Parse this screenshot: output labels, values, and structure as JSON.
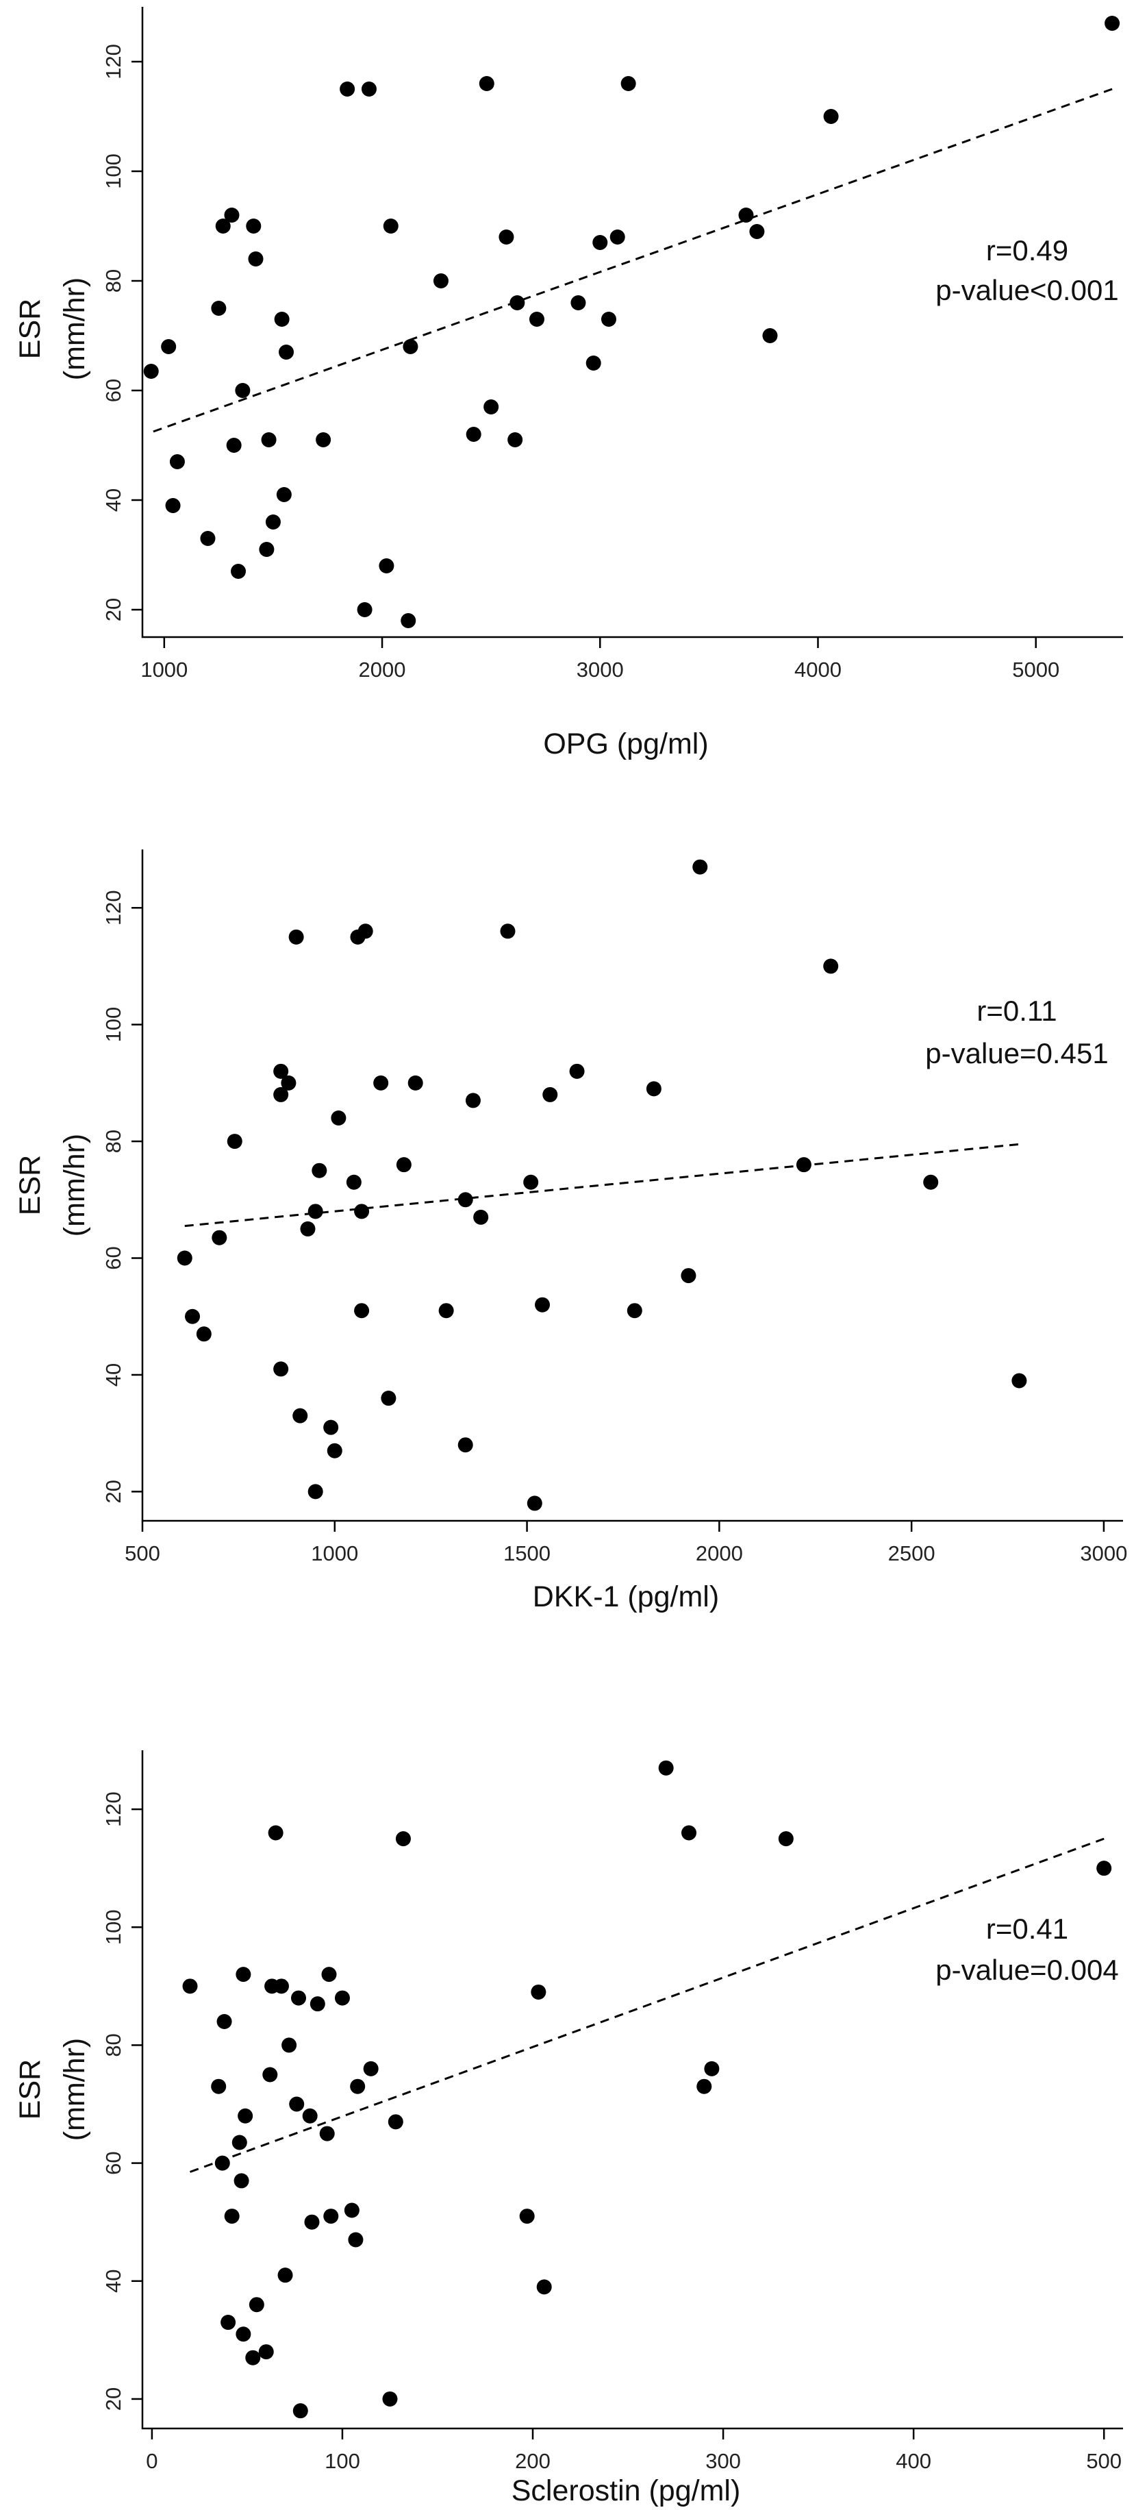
{
  "chart_data": [
    {
      "type": "scatter",
      "xlabel": "OPG (pg/ml)",
      "ylabel": [
        "ESR",
        "(mm/hr)"
      ],
      "xlim": [
        900,
        5400
      ],
      "ylim": [
        15,
        130
      ],
      "xticks": [
        1000,
        2000,
        3000,
        4000,
        5000
      ],
      "yticks": [
        20,
        40,
        60,
        80,
        100,
        120
      ],
      "annotation": [
        "r=0.49",
        "p-value<0.001"
      ],
      "marker_color": "#000000",
      "fit": {
        "x": [
          950,
          5350
        ],
        "y": [
          52.5,
          115
        ]
      },
      "points": [
        {
          "x": 940,
          "y": 63.5
        },
        {
          "x": 1020,
          "y": 68
        },
        {
          "x": 1040,
          "y": 39
        },
        {
          "x": 1060,
          "y": 47
        },
        {
          "x": 1200,
          "y": 33
        },
        {
          "x": 1250,
          "y": 75
        },
        {
          "x": 1270,
          "y": 90
        },
        {
          "x": 1310,
          "y": 92
        },
        {
          "x": 1320,
          "y": 50
        },
        {
          "x": 1340,
          "y": 27
        },
        {
          "x": 1360,
          "y": 60
        },
        {
          "x": 1410,
          "y": 90
        },
        {
          "x": 1420,
          "y": 84
        },
        {
          "x": 1470,
          "y": 31
        },
        {
          "x": 1480,
          "y": 51
        },
        {
          "x": 1500,
          "y": 36
        },
        {
          "x": 1540,
          "y": 73
        },
        {
          "x": 1550,
          "y": 41
        },
        {
          "x": 1560,
          "y": 67
        },
        {
          "x": 1730,
          "y": 51
        },
        {
          "x": 1840,
          "y": 115
        },
        {
          "x": 1920,
          "y": 20
        },
        {
          "x": 1940,
          "y": 115
        },
        {
          "x": 2020,
          "y": 28
        },
        {
          "x": 2040,
          "y": 90
        },
        {
          "x": 2120,
          "y": 18
        },
        {
          "x": 2130,
          "y": 68
        },
        {
          "x": 2270,
          "y": 80
        },
        {
          "x": 2420,
          "y": 52
        },
        {
          "x": 2480,
          "y": 116
        },
        {
          "x": 2500,
          "y": 57
        },
        {
          "x": 2570,
          "y": 88
        },
        {
          "x": 2610,
          "y": 51
        },
        {
          "x": 2620,
          "y": 76
        },
        {
          "x": 2710,
          "y": 73
        },
        {
          "x": 2900,
          "y": 76
        },
        {
          "x": 2970,
          "y": 65
        },
        {
          "x": 3000,
          "y": 87
        },
        {
          "x": 3040,
          "y": 73
        },
        {
          "x": 3080,
          "y": 88
        },
        {
          "x": 3130,
          "y": 116
        },
        {
          "x": 3670,
          "y": 92
        },
        {
          "x": 3720,
          "y": 89
        },
        {
          "x": 3780,
          "y": 70
        },
        {
          "x": 4060,
          "y": 110
        },
        {
          "x": 5350,
          "y": 127
        }
      ]
    },
    {
      "type": "scatter",
      "xlabel": "DKK-1 (pg/ml)",
      "ylabel": [
        "ESR",
        "(mm/hr)"
      ],
      "xlim": [
        500,
        3050
      ],
      "ylim": [
        15,
        130
      ],
      "xticks": [
        500,
        1000,
        1500,
        2000,
        2500,
        3000
      ],
      "yticks": [
        20,
        40,
        60,
        80,
        100,
        120
      ],
      "annotation": [
        "r=0.11",
        "p-value=0.451"
      ],
      "marker_color": "#000000",
      "fit": {
        "x": [
          610,
          2780
        ],
        "y": [
          65.5,
          79.5
        ]
      },
      "points": [
        {
          "x": 610,
          "y": 60
        },
        {
          "x": 630,
          "y": 50
        },
        {
          "x": 660,
          "y": 47
        },
        {
          "x": 700,
          "y": 63.5
        },
        {
          "x": 740,
          "y": 80
        },
        {
          "x": 860,
          "y": 41
        },
        {
          "x": 860,
          "y": 92
        },
        {
          "x": 860,
          "y": 88
        },
        {
          "x": 880,
          "y": 90
        },
        {
          "x": 900,
          "y": 115
        },
        {
          "x": 910,
          "y": 33
        },
        {
          "x": 930,
          "y": 65
        },
        {
          "x": 950,
          "y": 68
        },
        {
          "x": 950,
          "y": 20
        },
        {
          "x": 960,
          "y": 75
        },
        {
          "x": 990,
          "y": 31
        },
        {
          "x": 1000,
          "y": 27
        },
        {
          "x": 1010,
          "y": 84
        },
        {
          "x": 1050,
          "y": 73
        },
        {
          "x": 1060,
          "y": 115
        },
        {
          "x": 1070,
          "y": 51
        },
        {
          "x": 1070,
          "y": 68
        },
        {
          "x": 1080,
          "y": 116
        },
        {
          "x": 1120,
          "y": 90
        },
        {
          "x": 1140,
          "y": 36
        },
        {
          "x": 1180,
          "y": 76
        },
        {
          "x": 1210,
          "y": 90
        },
        {
          "x": 1290,
          "y": 51
        },
        {
          "x": 1340,
          "y": 70
        },
        {
          "x": 1340,
          "y": 28
        },
        {
          "x": 1360,
          "y": 87
        },
        {
          "x": 1380,
          "y": 67
        },
        {
          "x": 1450,
          "y": 116
        },
        {
          "x": 1510,
          "y": 73
        },
        {
          "x": 1520,
          "y": 18
        },
        {
          "x": 1540,
          "y": 52
        },
        {
          "x": 1560,
          "y": 88
        },
        {
          "x": 1630,
          "y": 92
        },
        {
          "x": 1780,
          "y": 51
        },
        {
          "x": 1830,
          "y": 89
        },
        {
          "x": 1920,
          "y": 57
        },
        {
          "x": 1950,
          "y": 127
        },
        {
          "x": 2220,
          "y": 76
        },
        {
          "x": 2290,
          "y": 110
        },
        {
          "x": 2550,
          "y": 73
        },
        {
          "x": 2780,
          "y": 39
        }
      ]
    },
    {
      "type": "scatter",
      "xlabel": "Sclerostin (pg/ml)",
      "ylabel": [
        "ESR",
        "(mm/hr)"
      ],
      "xlim": [
        -5,
        510
      ],
      "ylim": [
        15,
        130
      ],
      "xticks": [
        0,
        100,
        200,
        300,
        400,
        500
      ],
      "yticks": [
        20,
        40,
        60,
        80,
        100,
        120
      ],
      "annotation": [
        "r=0.41",
        "p-value=0.004"
      ],
      "marker_color": "#000000",
      "fit": {
        "x": [
          20,
          500
        ],
        "y": [
          58.5,
          115
        ]
      },
      "points": [
        {
          "x": 20,
          "y": 90
        },
        {
          "x": 35,
          "y": 73
        },
        {
          "x": 37,
          "y": 60
        },
        {
          "x": 38,
          "y": 84
        },
        {
          "x": 40,
          "y": 33
        },
        {
          "x": 42,
          "y": 51
        },
        {
          "x": 46,
          "y": 63.5
        },
        {
          "x": 47,
          "y": 57
        },
        {
          "x": 48,
          "y": 31
        },
        {
          "x": 48,
          "y": 92
        },
        {
          "x": 49,
          "y": 68
        },
        {
          "x": 53,
          "y": 27
        },
        {
          "x": 55,
          "y": 36
        },
        {
          "x": 60,
          "y": 28
        },
        {
          "x": 62,
          "y": 75
        },
        {
          "x": 63,
          "y": 90
        },
        {
          "x": 65,
          "y": 116
        },
        {
          "x": 68,
          "y": 90
        },
        {
          "x": 70,
          "y": 41
        },
        {
          "x": 72,
          "y": 80
        },
        {
          "x": 76,
          "y": 70
        },
        {
          "x": 77,
          "y": 88
        },
        {
          "x": 78,
          "y": 18
        },
        {
          "x": 83,
          "y": 68
        },
        {
          "x": 84,
          "y": 50
        },
        {
          "x": 87,
          "y": 87
        },
        {
          "x": 92,
          "y": 65
        },
        {
          "x": 93,
          "y": 92
        },
        {
          "x": 94,
          "y": 51
        },
        {
          "x": 100,
          "y": 88
        },
        {
          "x": 105,
          "y": 52
        },
        {
          "x": 107,
          "y": 47
        },
        {
          "x": 108,
          "y": 73
        },
        {
          "x": 115,
          "y": 76
        },
        {
          "x": 125,
          "y": 20
        },
        {
          "x": 128,
          "y": 67
        },
        {
          "x": 132,
          "y": 115
        },
        {
          "x": 197,
          "y": 51
        },
        {
          "x": 203,
          "y": 89
        },
        {
          "x": 206,
          "y": 39
        },
        {
          "x": 270,
          "y": 127
        },
        {
          "x": 282,
          "y": 116
        },
        {
          "x": 290,
          "y": 73
        },
        {
          "x": 294,
          "y": 76
        },
        {
          "x": 333,
          "y": 115
        },
        {
          "x": 500,
          "y": 110
        }
      ]
    }
  ]
}
